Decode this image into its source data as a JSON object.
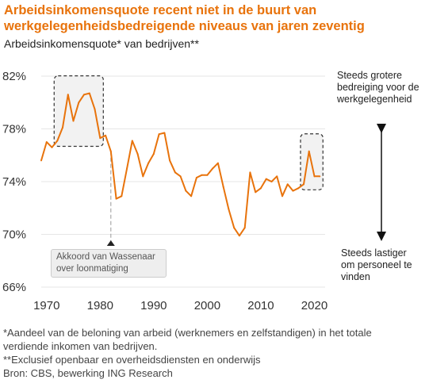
{
  "title": "Arbeidsinkomensquote recent niet in de buurt van werkgelegenheidsbedreigende niveaus van jaren zeventig",
  "subtitle": "Arbeidsinkomensquote* van bedrijven**",
  "footnotes": [
    "*Aandeel van de beloning van arbeid (werknemers en zelfstandigen) in het totale",
    "verdiende inkomen van bedrijven.",
    "**Exclusief openbaar en overheidsdiensten en onderwijs",
    "Bron: CBS, bewerking ING Research"
  ],
  "side_notes": {
    "top": [
      "Steeds grotere",
      "bedreiging voor de",
      "werkgelegenheid"
    ],
    "bottom": [
      "Steeds lastiger",
      "om personeel te",
      "vinden"
    ]
  },
  "annotation": [
    "Akkoord van Wassenaar",
    "over loonmatiging"
  ],
  "colors": {
    "series": "#e8730c",
    "title": "#e8730c",
    "grid": "#e6e6e6",
    "box": "#333333"
  },
  "chart_data": {
    "type": "line",
    "xlim": [
      1969,
      2022
    ],
    "ylim": [
      66,
      82
    ],
    "yticks": [
      66,
      70,
      74,
      78,
      82
    ],
    "ytick_labels": [
      "66%",
      "70%",
      "74%",
      "78%",
      "82%"
    ],
    "xticks": [
      1970,
      1980,
      1990,
      2000,
      2010,
      2020
    ],
    "xtick_labels": [
      "1970",
      "1980",
      "1990",
      "2000",
      "2010",
      "2020"
    ],
    "grid": true,
    "event_year": 1982,
    "highlight_ranges": [
      [
        1972,
        1980
      ],
      [
        2018,
        2021
      ]
    ],
    "x": [
      1969,
      1970,
      1971,
      1972,
      1973,
      1974,
      1975,
      1976,
      1977,
      1978,
      1979,
      1980,
      1981,
      1982,
      1983,
      1984,
      1985,
      1986,
      1987,
      1988,
      1989,
      1990,
      1991,
      1992,
      1993,
      1994,
      1995,
      1996,
      1997,
      1998,
      1999,
      2000,
      2001,
      2002,
      2003,
      2004,
      2005,
      2006,
      2007,
      2008,
      2009,
      2010,
      2011,
      2012,
      2013,
      2014,
      2015,
      2016,
      2017,
      2018,
      2019,
      2020,
      2021
    ],
    "y": [
      75.6,
      77.0,
      76.6,
      77.1,
      78.1,
      80.6,
      78.6,
      80.0,
      80.6,
      80.7,
      79.5,
      77.3,
      77.5,
      76.3,
      72.7,
      72.9,
      75.0,
      77.1,
      76.1,
      74.4,
      75.4,
      76.1,
      77.6,
      77.7,
      75.6,
      74.7,
      74.4,
      73.3,
      72.9,
      74.3,
      74.5,
      74.5,
      75.0,
      75.4,
      73.6,
      71.9,
      70.5,
      69.9,
      70.5,
      74.7,
      73.2,
      73.5,
      74.2,
      74.0,
      74.4,
      72.9,
      73.8,
      73.3,
      73.5,
      73.8,
      76.3,
      74.4,
      74.4
    ]
  }
}
